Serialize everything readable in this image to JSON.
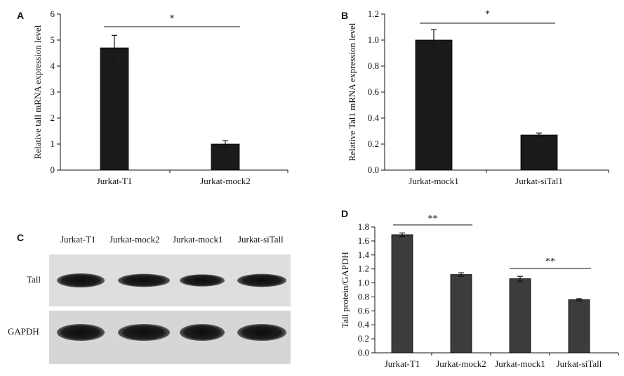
{
  "panels": {
    "A": {
      "letter": "A"
    },
    "B": {
      "letter": "B"
    },
    "C": {
      "letter": "C"
    },
    "D": {
      "letter": "D"
    }
  },
  "blot": {
    "lanes": [
      "Jurkat-T1",
      "Jurkat-mock2",
      "Jurkat-mock1",
      "Jurkat-siTall"
    ],
    "rows": [
      "Tall",
      "GAPDH"
    ],
    "band_intensity": {
      "Tall": [
        1.0,
        0.85,
        0.7,
        0.85
      ],
      "GAPDH": [
        1.0,
        1.0,
        1.0,
        1.0
      ]
    }
  },
  "chart_data": [
    {
      "panel": "A",
      "type": "bar",
      "categories": [
        "Jurkat-T1",
        "Jurkat-mock2"
      ],
      "values": [
        4.7,
        1.0
      ],
      "errors": [
        0.48,
        0.13
      ],
      "ylabel": "Relative tall mRNA expression level",
      "ylim": [
        0,
        6
      ],
      "yticks": [
        "0",
        "1",
        "2",
        "3",
        "4",
        "5",
        "6"
      ],
      "bar_color": "#1a1a1a",
      "significance": [
        {
          "from": 0,
          "to": 1,
          "label": "*"
        }
      ]
    },
    {
      "panel": "B",
      "type": "bar",
      "categories": [
        "Jurkat-mock1",
        "Jurkat-siTal1"
      ],
      "values": [
        1.0,
        0.27
      ],
      "errors": [
        0.08,
        0.015
      ],
      "ylabel": "Relative Tal1 mRNA expression level",
      "ylim": [
        0,
        1.2
      ],
      "yticks": [
        "0.0",
        "0.2",
        "0.4",
        "0.6",
        "0.8",
        "1.0",
        "1.2"
      ],
      "bar_color": "#1a1a1a",
      "significance": [
        {
          "from": 0,
          "to": 1,
          "label": "*"
        }
      ]
    },
    {
      "panel": "D",
      "type": "bar",
      "categories": [
        "Jurkat-T1",
        "Jurkat-mock2",
        "Jurkat-mock1",
        "Jurkat-siTall"
      ],
      "values": [
        1.69,
        1.12,
        1.06,
        0.76
      ],
      "errors": [
        0.025,
        0.025,
        0.035,
        0.015
      ],
      "ylabel": "Tall protein/GAPDH",
      "ylim": [
        0,
        1.8
      ],
      "yticks": [
        "0.0",
        "0.2",
        "0.4",
        "0.6",
        "0.8",
        "1.0",
        "1.2",
        "1.4",
        "1.6",
        "1.8"
      ],
      "bar_color": "#3c3c3c",
      "significance": [
        {
          "from": 0,
          "to": 1,
          "label": "**"
        },
        {
          "from": 2,
          "to": 3,
          "label": "**"
        }
      ]
    }
  ]
}
